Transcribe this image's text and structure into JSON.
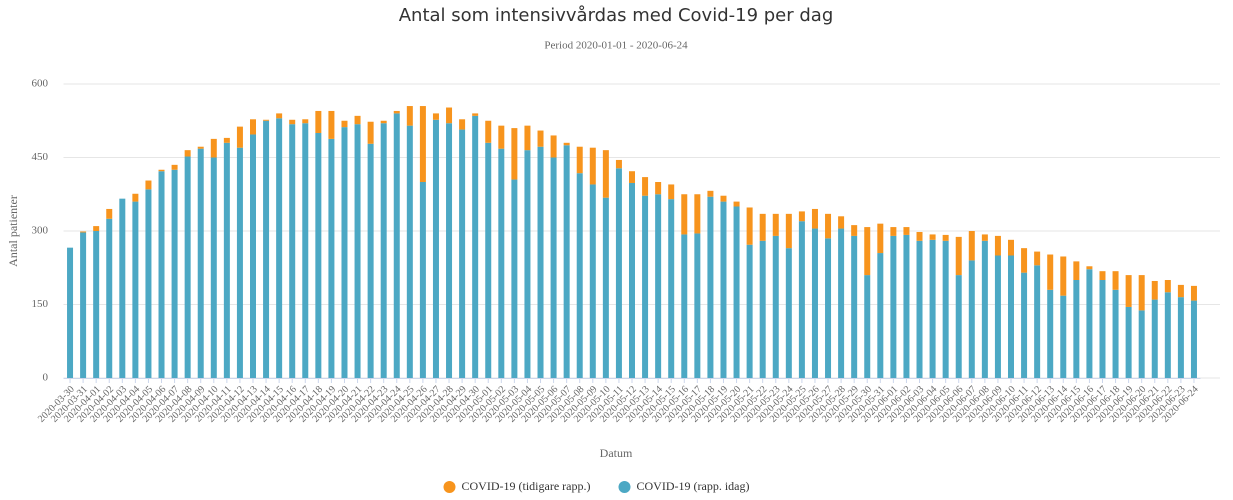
{
  "chart_data": {
    "type": "stacked_bar",
    "title": "Antal som intensivvårdas med Covid-19 per dag",
    "subtitle": "Period 2020-01-01 - 2020-06-24",
    "x_label": "Datum",
    "y_label": "Antal patienter",
    "categories": [
      "2020-03-30",
      "2020-03-31",
      "2020-04-01",
      "2020-04-02",
      "2020-04-03",
      "2020-04-04",
      "2020-04-05",
      "2020-04-06",
      "2020-04-07",
      "2020-04-08",
      "2020-04-09",
      "2020-04-10",
      "2020-04-11",
      "2020-04-12",
      "2020-04-13",
      "2020-04-14",
      "2020-04-15",
      "2020-04-16",
      "2020-04-17",
      "2020-04-18",
      "2020-04-19",
      "2020-04-20",
      "2020-04-21",
      "2020-04-22",
      "2020-04-23",
      "2020-04-24",
      "2020-04-25",
      "2020-04-26",
      "2020-04-27",
      "2020-04-28",
      "2020-04-29",
      "2020-04-30",
      "2020-05-01",
      "2020-05-02",
      "2020-05-03",
      "2020-05-04",
      "2020-05-05",
      "2020-05-06",
      "2020-05-07",
      "2020-05-08",
      "2020-05-09",
      "2020-05-10",
      "2020-05-11",
      "2020-05-12",
      "2020-05-13",
      "2020-05-14",
      "2020-05-15",
      "2020-05-16",
      "2020-05-17",
      "2020-05-18",
      "2020-05-19",
      "2020-05-20",
      "2020-05-21",
      "2020-05-22",
      "2020-05-23",
      "2020-05-24",
      "2020-05-25",
      "2020-05-26",
      "2020-05-27",
      "2020-05-28",
      "2020-05-29",
      "2020-05-30",
      "2020-05-31",
      "2020-06-01",
      "2020-06-02",
      "2020-06-03",
      "2020-06-04",
      "2020-06-05",
      "2020-06-06",
      "2020-06-07",
      "2020-06-08",
      "2020-06-09",
      "2020-06-10",
      "2020-06-11",
      "2020-06-12",
      "2020-06-13",
      "2020-06-14",
      "2020-06-15",
      "2020-06-16",
      "2020-06-17",
      "2020-06-18",
      "2020-06-19",
      "2020-06-20",
      "2020-06-21",
      "2020-06-22",
      "2020-06-23",
      "2020-06-24"
    ],
    "series": [
      {
        "name": "COVID-19 (tidigare rapp.)",
        "color": "#f7941d",
        "values": [
          0,
          2,
          10,
          20,
          0,
          16,
          18,
          3,
          10,
          13,
          4,
          38,
          10,
          43,
          31,
          2,
          10,
          9,
          8,
          45,
          57,
          13,
          17,
          45,
          5,
          5,
          40,
          155,
          13,
          32,
          21,
          5,
          45,
          47,
          105,
          50,
          33,
          45,
          5,
          54,
          75,
          97,
          17,
          24,
          38,
          25,
          30,
          82,
          80,
          12,
          12,
          10,
          76,
          55,
          45,
          70,
          20,
          40,
          50,
          25,
          22,
          98,
          60,
          18,
          16,
          18,
          11,
          12,
          78,
          60,
          13,
          40,
          32,
          50,
          28,
          72,
          80,
          38,
          6,
          18,
          38,
          65,
          72,
          38,
          25,
          25,
          30
        ]
      },
      {
        "name": "COVID-19 (rapp. idag)",
        "color": "#4ca8c4",
        "values": [
          266,
          297,
          300,
          325,
          366,
          360,
          385,
          422,
          425,
          452,
          468,
          450,
          480,
          470,
          497,
          525,
          530,
          518,
          520,
          500,
          488,
          512,
          518,
          478,
          520,
          540,
          515,
          400,
          527,
          520,
          507,
          535,
          480,
          468,
          405,
          465,
          472,
          450,
          475,
          418,
          395,
          368,
          428,
          398,
          372,
          375,
          365,
          293,
          295,
          370,
          360,
          350,
          272,
          280,
          290,
          265,
          320,
          305,
          285,
          305,
          290,
          210,
          255,
          290,
          292,
          280,
          282,
          280,
          210,
          240,
          280,
          250,
          250,
          215,
          230,
          180,
          168,
          200,
          222,
          200,
          180,
          145,
          138,
          160,
          175,
          165,
          158
        ]
      }
    ],
    "ylim": [
      0,
      600
    ],
    "yticks": [
      0,
      150,
      300,
      450,
      600
    ],
    "grid": true
  }
}
